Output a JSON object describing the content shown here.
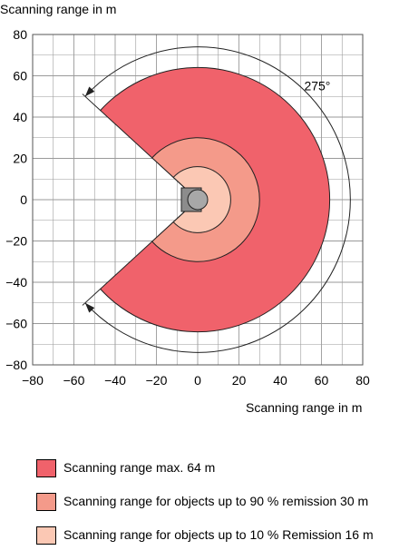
{
  "chart_data": {
    "type": "diagram",
    "ylabel": "Scanning range in m",
    "xlabel": "Scanning range in m",
    "xlim": [
      -80,
      80
    ],
    "ylim": [
      -80,
      80
    ],
    "x_ticks": [
      -80,
      -60,
      -40,
      -20,
      0,
      20,
      40,
      60,
      80
    ],
    "y_ticks": [
      -80,
      -60,
      -40,
      -20,
      0,
      20,
      40,
      60,
      80
    ],
    "x_tick_labels": [
      "−80",
      "−60",
      "−40",
      "−20",
      "0",
      "20",
      "40",
      "60",
      "80"
    ],
    "y_tick_labels": [
      "−80",
      "−60",
      "−40",
      "−20",
      "0",
      "20",
      "40",
      "60",
      "80"
    ],
    "grid": true,
    "scan_angle_deg": 275,
    "scan_angle_label": "275°",
    "ranges": [
      {
        "name": "Scanning range max. 64 m",
        "radius_m": 64,
        "color": "#f0626b"
      },
      {
        "name": "Scanning range for objects up to 90 % remission 30 m",
        "radius_m": 30,
        "color": "#f49a8a"
      },
      {
        "name": "Scanning range for objects up to 10 % Remission 16 m",
        "radius_m": 16,
        "color": "#fbc8b4"
      }
    ]
  },
  "legend": [
    {
      "label": "Scanning range max. 64 m",
      "color": "#f0626b"
    },
    {
      "label": "Scanning range for objects up to 90 % remission 30 m",
      "color": "#f49a8a"
    },
    {
      "label": "Scanning range for objects up to 10 % Remission 16 m",
      "color": "#fbc8b4"
    }
  ],
  "colors": {
    "grid": "#9a9a9a",
    "outline": "#222222",
    "sensor_body": "#8c8c8c"
  }
}
